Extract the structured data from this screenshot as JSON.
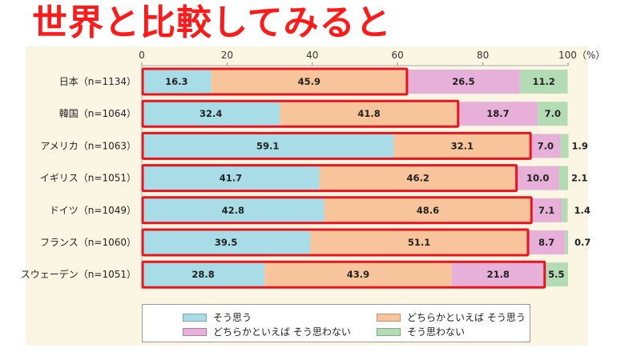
{
  "headline": "世界と比較してみると",
  "chart_data": {
    "type": "bar",
    "orientation": "horizontal",
    "stacked": true,
    "categories": [
      "日本（n=1134）",
      "韓国（n=1064）",
      "アメリカ（n=1063）",
      "イギリス（n=1051）",
      "ドイツ（n=1049）",
      "フランス（n=1060）",
      "スウェーデン（n=1051）"
    ],
    "series": [
      {
        "name": "そう思う",
        "color": "#a8dce6",
        "values": [
          16.3,
          32.4,
          59.1,
          41.7,
          42.8,
          39.5,
          28.8
        ]
      },
      {
        "name": "どちらかといえば そう思う",
        "color": "#f8c49c",
        "values": [
          45.9,
          41.8,
          32.1,
          46.2,
          48.6,
          51.1,
          43.9
        ]
      },
      {
        "name": "どちらかといえば そう思わない",
        "color": "#e6b0d8",
        "values": [
          26.5,
          18.7,
          7.0,
          10.0,
          7.1,
          8.7,
          21.8
        ]
      },
      {
        "name": "そう思わない",
        "color": "#b4dcb4",
        "values": [
          11.2,
          7.0,
          1.9,
          2.1,
          1.4,
          0.7,
          5.5
        ]
      }
    ],
    "labels": [
      [
        "16.3",
        "45.9",
        "26.5",
        "11.2"
      ],
      [
        "32.4",
        "41.8",
        "18.7",
        "7.0"
      ],
      [
        "59.1",
        "32.1",
        "7.0",
        "1.9"
      ],
      [
        "41.7",
        "46.2",
        "10.0",
        "2.1"
      ],
      [
        "42.8",
        "48.6",
        "7.1",
        "1.4"
      ],
      [
        "39.5",
        "51.1",
        "8.7",
        "0.7"
      ],
      [
        "28.8",
        "43.9",
        "21.8",
        "5.5"
      ]
    ],
    "x_ticks": [
      "0",
      "20",
      "40",
      "60",
      "80",
      "100（%）"
    ],
    "xlim": [
      0,
      100
    ],
    "grid": false,
    "legend_position": "bottom",
    "highlight_color": "#e8141e",
    "highlight_series_count": [
      2,
      2,
      2,
      2,
      2,
      2,
      3
    ]
  }
}
